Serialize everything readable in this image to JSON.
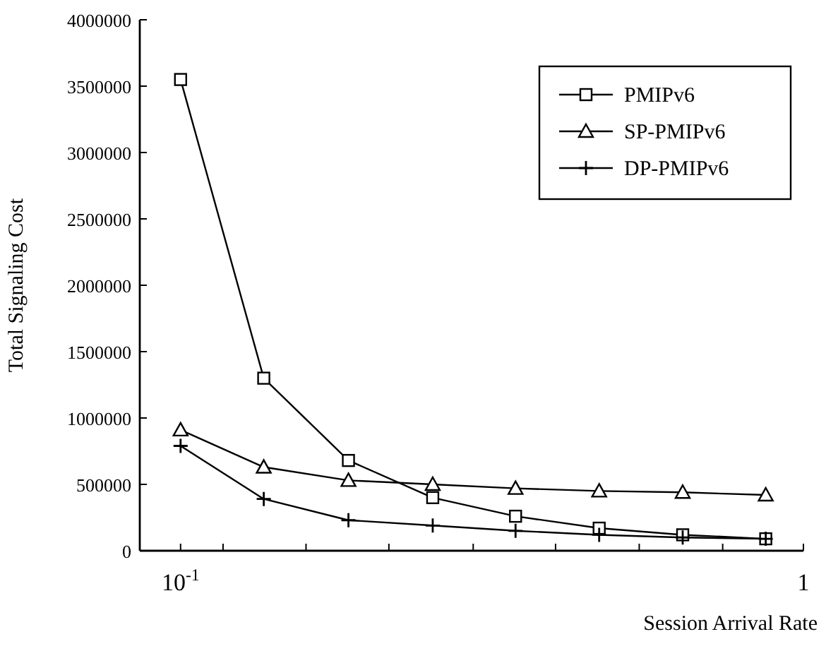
{
  "chart_data": {
    "type": "line",
    "xlabel": "Session Arrival Rate",
    "ylabel": "Total Signaling Cost",
    "x": [
      0.1,
      0.136,
      0.186,
      0.254,
      0.345,
      0.47,
      0.64,
      0.87
    ],
    "series": [
      {
        "name": "PMIPv6",
        "color": "#000000",
        "marker": "square",
        "values": [
          3550000,
          1300000,
          680000,
          400000,
          260000,
          170000,
          120000,
          90000
        ]
      },
      {
        "name": "SP-PMIPv6",
        "color": "#000000",
        "marker": "triangle",
        "values": [
          910000,
          630000,
          530000,
          500000,
          470000,
          450000,
          440000,
          420000
        ]
      },
      {
        "name": "DP-PMIPv6",
        "color": "#000000",
        "marker": "cross",
        "values": [
          790000,
          390000,
          230000,
          190000,
          150000,
          120000,
          100000,
          90000
        ]
      }
    ],
    "log": "x",
    "xlim": [
      0.086,
      1
    ],
    "xticks": [
      {
        "value": 0.1,
        "label": "10$^{-1}$"
      },
      {
        "value": 0.117,
        "label": null
      },
      {
        "value": 0.159,
        "label": null
      },
      {
        "value": 0.216,
        "label": null
      },
      {
        "value": 0.295,
        "label": null
      },
      {
        "value": 0.4,
        "label": null
      },
      {
        "value": 0.545,
        "label": null
      },
      {
        "value": 0.742,
        "label": null
      },
      1
    ],
    "ylim": [
      0,
      4000000
    ],
    "yticks": [
      0,
      500000,
      1000000,
      1500000,
      2000000,
      2500000,
      3000000,
      3500000,
      4000000
    ],
    "grid": false,
    "legend": "top right",
    "line_style": "solid"
  }
}
